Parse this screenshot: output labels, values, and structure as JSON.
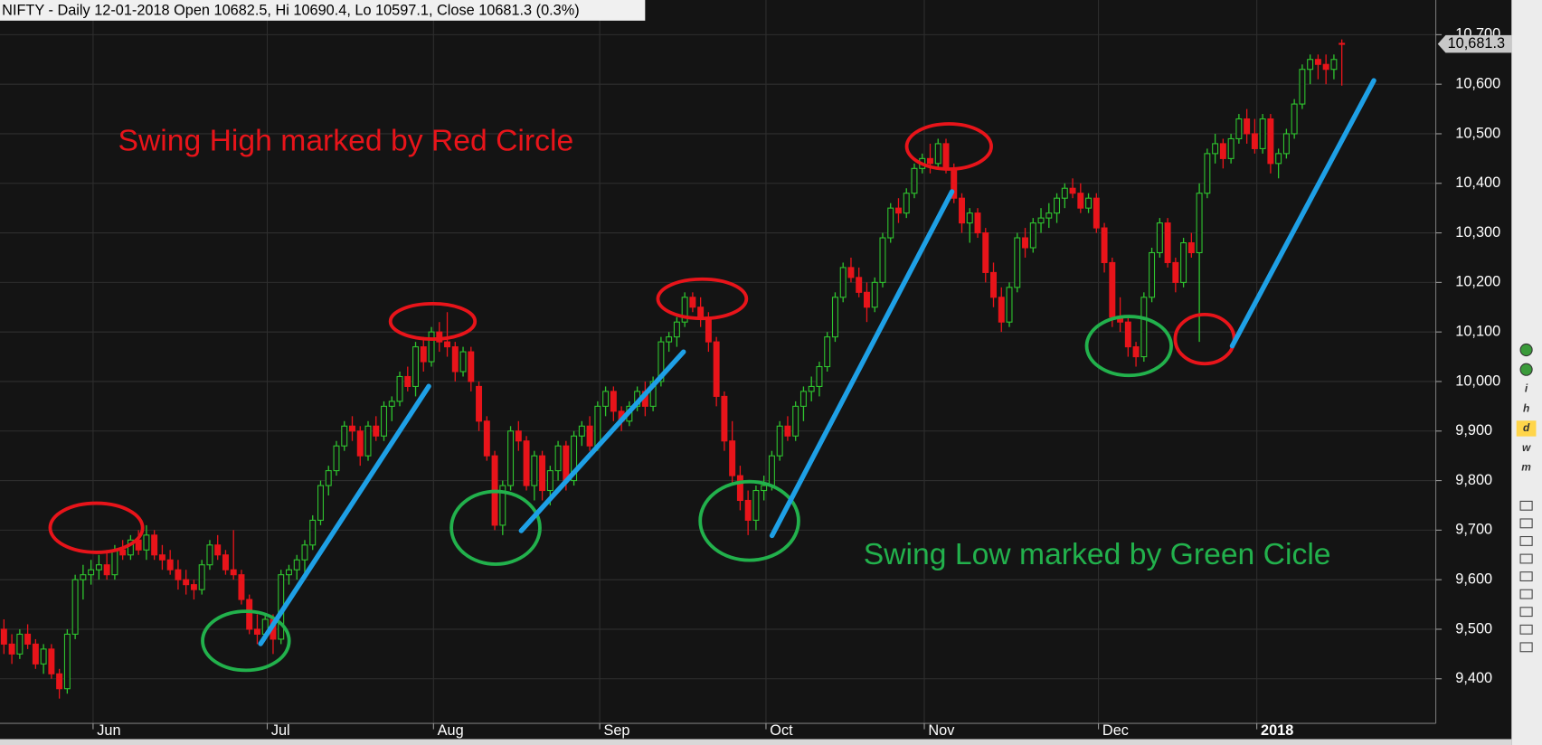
{
  "chart_data": {
    "type": "candlestick",
    "title": "NIFTY - Daily 12-01-2018 Open 10682.5, Hi 10690.4, Lo 10597.1, Close 10681.3 (0.3%)",
    "annotations": [
      "Swing High marked by Red Circle",
      "Swing Low marked by Green Cicle"
    ],
    "categories": [
      null,
      null,
      null,
      null,
      null,
      null,
      null,
      null,
      null,
      null,
      null,
      null,
      null,
      "Jun",
      null,
      null,
      null,
      null,
      null,
      null,
      null,
      null,
      null,
      null,
      null,
      null,
      null,
      null,
      null,
      null,
      null,
      null,
      null,
      null,
      null,
      "Jul",
      null,
      null,
      null,
      null,
      null,
      null,
      null,
      null,
      null,
      null,
      null,
      null,
      null,
      null,
      null,
      null,
      null,
      null,
      null,
      null,
      "Aug",
      null,
      null,
      null,
      null,
      null,
      null,
      null,
      null,
      null,
      null,
      null,
      null,
      null,
      null,
      null,
      null,
      null,
      null,
      null,
      null,
      "Sep",
      null,
      null,
      null,
      null,
      null,
      null,
      null,
      null,
      null,
      null,
      null,
      null,
      null,
      null,
      null,
      null,
      null,
      null,
      null,
      null,
      "Oct",
      null,
      null,
      null,
      null,
      null,
      null,
      null,
      null,
      null,
      null,
      null,
      null,
      null,
      null,
      null,
      null,
      null,
      null,
      null,
      "Nov",
      null,
      null,
      null,
      null,
      null,
      null,
      null,
      null,
      null,
      null,
      null,
      null,
      null,
      null,
      null,
      null,
      null,
      null,
      null,
      null,
      null,
      "Dec",
      null,
      null,
      null,
      null,
      null,
      null,
      null,
      null,
      null,
      null,
      null,
      null,
      null,
      null,
      null,
      null,
      null,
      null,
      null,
      "2018",
      null,
      null,
      null,
      null,
      null,
      null,
      null,
      null,
      null
    ],
    "ohlc": [
      [
        9500,
        9520,
        9450,
        9470
      ],
      [
        9470,
        9490,
        9430,
        9450
      ],
      [
        9450,
        9500,
        9440,
        9490
      ],
      [
        9490,
        9510,
        9460,
        9470
      ],
      [
        9470,
        9480,
        9420,
        9430
      ],
      [
        9430,
        9470,
        9410,
        9460
      ],
      [
        9460,
        9470,
        9400,
        9410
      ],
      [
        9410,
        9420,
        9360,
        9380
      ],
      [
        9380,
        9500,
        9370,
        9490
      ],
      [
        9490,
        9610,
        9480,
        9600
      ],
      [
        9600,
        9630,
        9560,
        9610
      ],
      [
        9610,
        9640,
        9590,
        9620
      ],
      [
        9620,
        9650,
        9600,
        9630
      ],
      [
        9630,
        9660,
        9600,
        9610
      ],
      [
        9610,
        9670,
        9600,
        9660
      ],
      [
        9660,
        9680,
        9640,
        9650
      ],
      [
        9650,
        9690,
        9640,
        9680
      ],
      [
        9680,
        9700,
        9650,
        9660
      ],
      [
        9660,
        9710,
        9640,
        9690
      ],
      [
        9690,
        9700,
        9640,
        9650
      ],
      [
        9650,
        9670,
        9620,
        9640
      ],
      [
        9640,
        9660,
        9610,
        9620
      ],
      [
        9620,
        9640,
        9580,
        9600
      ],
      [
        9600,
        9620,
        9570,
        9590
      ],
      [
        9590,
        9600,
        9560,
        9580
      ],
      [
        9580,
        9640,
        9570,
        9630
      ],
      [
        9630,
        9680,
        9620,
        9670
      ],
      [
        9670,
        9690,
        9640,
        9650
      ],
      [
        9650,
        9660,
        9610,
        9620
      ],
      [
        9620,
        9700,
        9600,
        9610
      ],
      [
        9610,
        9620,
        9550,
        9560
      ],
      [
        9560,
        9570,
        9490,
        9500
      ],
      [
        9500,
        9530,
        9470,
        9490
      ],
      [
        9490,
        9530,
        9480,
        9520
      ],
      [
        9520,
        9530,
        9450,
        9480
      ],
      [
        9480,
        9620,
        9470,
        9610
      ],
      [
        9610,
        9630,
        9590,
        9620
      ],
      [
        9620,
        9650,
        9600,
        9640
      ],
      [
        9640,
        9680,
        9610,
        9670
      ],
      [
        9670,
        9730,
        9660,
        9720
      ],
      [
        9720,
        9800,
        9710,
        9790
      ],
      [
        9790,
        9830,
        9770,
        9820
      ],
      [
        9820,
        9880,
        9810,
        9870
      ],
      [
        9870,
        9920,
        9860,
        9910
      ],
      [
        9910,
        9930,
        9880,
        9900
      ],
      [
        9900,
        9910,
        9830,
        9850
      ],
      [
        9850,
        9920,
        9840,
        9910
      ],
      [
        9910,
        9930,
        9880,
        9890
      ],
      [
        9890,
        9960,
        9880,
        9950
      ],
      [
        9950,
        9970,
        9920,
        9960
      ],
      [
        9960,
        10020,
        9950,
        10010
      ],
      [
        10010,
        10030,
        9980,
        9990
      ],
      [
        9990,
        10080,
        9970,
        10070
      ],
      [
        10070,
        10090,
        10020,
        10040
      ],
      [
        10040,
        10110,
        10030,
        10100
      ],
      [
        10100,
        10120,
        10060,
        10080
      ],
      [
        10080,
        10140,
        10050,
        10070
      ],
      [
        10070,
        10080,
        10000,
        10020
      ],
      [
        10020,
        10070,
        10010,
        10060
      ],
      [
        10060,
        10070,
        9980,
        10000
      ],
      [
        9990,
        10000,
        9900,
        9920
      ],
      [
        9920,
        9930,
        9840,
        9850
      ],
      [
        9850,
        9860,
        9700,
        9710
      ],
      [
        9710,
        9800,
        9690,
        9790
      ],
      [
        9790,
        9910,
        9780,
        9900
      ],
      [
        9900,
        9920,
        9860,
        9880
      ],
      [
        9880,
        9890,
        9780,
        9790
      ],
      [
        9790,
        9860,
        9760,
        9850
      ],
      [
        9850,
        9860,
        9760,
        9780
      ],
      [
        9780,
        9830,
        9750,
        9820
      ],
      [
        9820,
        9880,
        9800,
        9870
      ],
      [
        9870,
        9880,
        9780,
        9800
      ],
      [
        9800,
        9900,
        9790,
        9890
      ],
      [
        9890,
        9920,
        9870,
        9910
      ],
      [
        9910,
        9930,
        9860,
        9870
      ],
      [
        9870,
        9960,
        9860,
        9950
      ],
      [
        9950,
        9990,
        9930,
        9980
      ],
      [
        9980,
        9990,
        9920,
        9940
      ],
      [
        9940,
        9950,
        9900,
        9920
      ],
      [
        9920,
        9960,
        9910,
        9950
      ],
      [
        9950,
        9990,
        9940,
        9980
      ],
      [
        9980,
        10000,
        9930,
        9950
      ],
      [
        9950,
        10010,
        9940,
        10000
      ],
      [
        10000,
        10090,
        9990,
        10080
      ],
      [
        10080,
        10100,
        10060,
        10090
      ],
      [
        10090,
        10130,
        10070,
        10120
      ],
      [
        10120,
        10180,
        10110,
        10170
      ],
      [
        10170,
        10180,
        10140,
        10150
      ],
      [
        10150,
        10170,
        10110,
        10130
      ],
      [
        10130,
        10140,
        10060,
        10080
      ],
      [
        10080,
        10090,
        9950,
        9970
      ],
      [
        9970,
        9980,
        9860,
        9880
      ],
      [
        9880,
        9920,
        9790,
        9810
      ],
      [
        9810,
        9830,
        9740,
        9760
      ],
      [
        9760,
        9780,
        9690,
        9720
      ],
      [
        9720,
        9790,
        9700,
        9780
      ],
      [
        9780,
        9810,
        9760,
        9790
      ],
      [
        9790,
        9860,
        9780,
        9850
      ],
      [
        9850,
        9920,
        9840,
        9910
      ],
      [
        9910,
        9930,
        9880,
        9890
      ],
      [
        9890,
        9960,
        9880,
        9950
      ],
      [
        9950,
        9990,
        9920,
        9980
      ],
      [
        9980,
        10010,
        9960,
        9990
      ],
      [
        9990,
        10040,
        9970,
        10030
      ],
      [
        10030,
        10100,
        10020,
        10090
      ],
      [
        10090,
        10180,
        10080,
        10170
      ],
      [
        10170,
        10240,
        10160,
        10230
      ],
      [
        10230,
        10250,
        10200,
        10210
      ],
      [
        10210,
        10230,
        10170,
        10180
      ],
      [
        10180,
        10200,
        10120,
        10150
      ],
      [
        10150,
        10210,
        10140,
        10200
      ],
      [
        10200,
        10300,
        10190,
        10290
      ],
      [
        10290,
        10360,
        10280,
        10350
      ],
      [
        10350,
        10370,
        10320,
        10340
      ],
      [
        10340,
        10390,
        10330,
        10380
      ],
      [
        10380,
        10440,
        10370,
        10430
      ],
      [
        10430,
        10460,
        10420,
        10450
      ],
      [
        10450,
        10480,
        10420,
        10440
      ],
      [
        10440,
        10490,
        10430,
        10480
      ],
      [
        10480,
        10490,
        10420,
        10430
      ],
      [
        10430,
        10440,
        10360,
        10370
      ],
      [
        10370,
        10380,
        10300,
        10320
      ],
      [
        10320,
        10350,
        10280,
        10340
      ],
      [
        10340,
        10350,
        10290,
        10300
      ],
      [
        10300,
        10310,
        10200,
        10220
      ],
      [
        10220,
        10240,
        10150,
        10170
      ],
      [
        10170,
        10190,
        10100,
        10120
      ],
      [
        10120,
        10200,
        10110,
        10190
      ],
      [
        10190,
        10300,
        10180,
        10290
      ],
      [
        10290,
        10310,
        10250,
        10270
      ],
      [
        10270,
        10330,
        10260,
        10320
      ],
      [
        10320,
        10350,
        10300,
        10330
      ],
      [
        10330,
        10360,
        10310,
        10340
      ],
      [
        10340,
        10380,
        10320,
        10370
      ],
      [
        10370,
        10400,
        10350,
        10390
      ],
      [
        10390,
        10410,
        10370,
        10380
      ],
      [
        10380,
        10400,
        10340,
        10350
      ],
      [
        10350,
        10380,
        10340,
        10370
      ],
      [
        10370,
        10380,
        10300,
        10310
      ],
      [
        10310,
        10320,
        10220,
        10240
      ],
      [
        10240,
        10250,
        10110,
        10130
      ],
      [
        10130,
        10170,
        10100,
        10120
      ],
      [
        10120,
        10130,
        10050,
        10070
      ],
      [
        10070,
        10080,
        10030,
        10050
      ],
      [
        10050,
        10180,
        10040,
        10170
      ],
      [
        10170,
        10270,
        10160,
        10260
      ],
      [
        10260,
        10330,
        10250,
        10320
      ],
      [
        10320,
        10330,
        10230,
        10240
      ],
      [
        10240,
        10250,
        10180,
        10200
      ],
      [
        10200,
        10290,
        10190,
        10280
      ],
      [
        10280,
        10300,
        10250,
        10260
      ],
      [
        10260,
        10400,
        10080,
        10380
      ],
      [
        10380,
        10470,
        10370,
        10460
      ],
      [
        10460,
        10500,
        10440,
        10480
      ],
      [
        10480,
        10490,
        10430,
        10450
      ],
      [
        10450,
        10500,
        10440,
        10490
      ],
      [
        10490,
        10540,
        10480,
        10530
      ],
      [
        10530,
        10550,
        10480,
        10500
      ],
      [
        10500,
        10530,
        10460,
        10470
      ],
      [
        10470,
        10540,
        10460,
        10530
      ],
      [
        10530,
        10540,
        10420,
        10440
      ],
      [
        10440,
        10470,
        10410,
        10460
      ],
      [
        10460,
        10510,
        10450,
        10500
      ],
      [
        10500,
        10570,
        10490,
        10560
      ],
      [
        10560,
        10640,
        10550,
        10630
      ],
      [
        10630,
        10660,
        10600,
        10650
      ],
      [
        10650,
        10660,
        10610,
        10640
      ],
      [
        10640,
        10660,
        10600,
        10630
      ],
      [
        10630,
        10660,
        10610,
        10650
      ],
      [
        10682.5,
        10690.4,
        10597.1,
        10681.3
      ]
    ],
    "ylim": [
      9310,
      10770
    ],
    "yticks": [
      {
        "value": 9400,
        "label": "9,400"
      },
      {
        "value": 9500,
        "label": "9,500"
      },
      {
        "value": 9600,
        "label": "9,600"
      },
      {
        "value": 9700,
        "label": "9,700"
      },
      {
        "value": 9800,
        "label": "9,800"
      },
      {
        "value": 9900,
        "label": "9,900"
      },
      {
        "value": 10000,
        "label": "10,000"
      },
      {
        "value": 10100,
        "label": "10,100"
      },
      {
        "value": 10200,
        "label": "10,200"
      },
      {
        "value": 10300,
        "label": "10,300"
      },
      {
        "value": 10400,
        "label": "10,400"
      },
      {
        "value": 10500,
        "label": "10,500"
      },
      {
        "value": 10600,
        "label": "10,600"
      },
      {
        "value": 10700,
        "label": "10,700"
      }
    ],
    "last_price": {
      "value": 10681.3,
      "label": "10,681.3"
    },
    "up_color": "#2fc52f",
    "down_color": "#e8141a",
    "grid": true,
    "toolbar": [
      "i",
      "h",
      "d",
      "w",
      "m"
    ]
  }
}
